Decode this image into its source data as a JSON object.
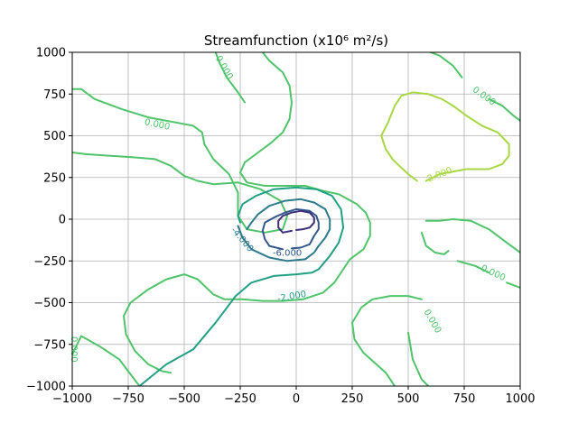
{
  "chart_data": {
    "type": "contour",
    "title": "Streamfunction (x10⁶ m²/s)",
    "xlabel": "",
    "ylabel": "",
    "xlim": [
      -1000,
      1000
    ],
    "ylim": [
      -1000,
      1000
    ],
    "xticks": [
      -1000,
      -750,
      -500,
      -250,
      0,
      250,
      500,
      750,
      1000
    ],
    "yticks": [
      -1000,
      -750,
      -500,
      -250,
      0,
      250,
      500,
      750,
      1000
    ],
    "xtick_labels": [
      "−1000",
      "−750",
      "−500",
      "−250",
      "0",
      "250",
      "500",
      "750",
      "1000"
    ],
    "ytick_labels": [
      "−1000",
      "−750",
      "−500",
      "−250",
      "0",
      "250",
      "500",
      "750",
      "1000"
    ],
    "grid": true,
    "levels": [
      -8,
      -6,
      -4,
      -2,
      0,
      2
    ],
    "level_colors": {
      "-8": "#3e2f7a",
      "-6": "#31578b",
      "-4": "#2b7a8c",
      "-2": "#21a084",
      "0": "#4fc46b",
      "2": "#a7d844"
    },
    "contours": [
      {
        "level": 0,
        "points": [
          [
            -1000,
            -810
          ],
          [
            -960,
            -700
          ],
          [
            -880,
            -760
          ],
          [
            -790,
            -840
          ],
          [
            -700,
            -1000
          ]
        ]
      },
      {
        "level": 0,
        "points": [
          [
            -1000,
            780
          ],
          [
            -960,
            780
          ],
          [
            -900,
            720
          ],
          [
            -780,
            660
          ],
          [
            -660,
            610
          ],
          [
            -540,
            580
          ],
          [
            -460,
            560
          ],
          [
            -420,
            520
          ],
          [
            -410,
            450
          ],
          [
            -370,
            360
          ],
          [
            -300,
            270
          ],
          [
            -260,
            160
          ],
          [
            -260,
            20
          ],
          [
            -220,
            -60
          ],
          [
            -140,
            -80
          ],
          [
            -60,
            -60
          ],
          [
            -40,
            20
          ],
          [
            -70,
            110
          ],
          [
            -160,
            180
          ],
          [
            -260,
            220
          ],
          [
            -370,
            210
          ],
          [
            -440,
            230
          ],
          [
            -500,
            260
          ],
          [
            -560,
            320
          ],
          [
            -630,
            360
          ],
          [
            -720,
            370
          ],
          [
            -830,
            380
          ],
          [
            -940,
            390
          ],
          [
            -1000,
            400
          ]
        ]
      },
      {
        "level": 0,
        "points": [
          [
            -360,
            1000
          ],
          [
            -340,
            930
          ],
          [
            -310,
            850
          ],
          [
            -260,
            760
          ],
          [
            -230,
            700
          ]
        ]
      },
      {
        "level": 0,
        "points": [
          [
            -150,
            1000
          ],
          [
            -120,
            950
          ],
          [
            -60,
            880
          ],
          [
            -30,
            800
          ],
          [
            -20,
            700
          ],
          [
            -30,
            600
          ],
          [
            -60,
            520
          ],
          [
            -110,
            460
          ],
          [
            -170,
            400
          ],
          [
            -230,
            340
          ],
          [
            -250,
            280
          ],
          [
            -220,
            220
          ],
          [
            -140,
            200
          ],
          [
            -60,
            200
          ],
          [
            40,
            200
          ],
          [
            120,
            170
          ],
          [
            190,
            150
          ],
          [
            270,
            90
          ],
          [
            310,
            40
          ],
          [
            330,
            -20
          ],
          [
            330,
            -100
          ],
          [
            300,
            -180
          ],
          [
            240,
            -240
          ],
          [
            200,
            -320
          ],
          [
            170,
            -380
          ],
          [
            120,
            -440
          ],
          [
            30,
            -480
          ],
          [
            -60,
            -490
          ],
          [
            -150,
            -490
          ],
          [
            -240,
            -480
          ],
          [
            -320,
            -480
          ],
          [
            -370,
            -450
          ],
          [
            -440,
            -360
          ],
          [
            -500,
            -330
          ],
          [
            -580,
            -360
          ],
          [
            -660,
            -420
          ],
          [
            -740,
            -500
          ],
          [
            -770,
            -580
          ],
          [
            -760,
            -690
          ],
          [
            -720,
            -790
          ],
          [
            -660,
            -870
          ],
          [
            -600,
            -910
          ],
          [
            -560,
            -920
          ]
        ]
      },
      {
        "level": 0,
        "points": [
          [
            600,
            1000
          ],
          [
            640,
            980
          ],
          [
            700,
            920
          ],
          [
            740,
            850
          ]
        ]
      },
      {
        "level": 0,
        "points": [
          [
            860,
            720
          ],
          [
            920,
            680
          ],
          [
            970,
            620
          ],
          [
            1000,
            590
          ]
        ]
      },
      {
        "level": 0,
        "points": [
          [
            580,
            -10
          ],
          [
            640,
            -10
          ],
          [
            700,
            0
          ],
          [
            780,
            -10
          ],
          [
            860,
            -60
          ],
          [
            940,
            -140
          ],
          [
            1000,
            -200
          ]
        ]
      },
      {
        "level": 0,
        "points": [
          [
            560,
            -80
          ],
          [
            580,
            -160
          ],
          [
            620,
            -200
          ],
          [
            660,
            -210
          ],
          [
            680,
            -190
          ]
        ]
      },
      {
        "level": 0,
        "points": [
          [
            720,
            -250
          ],
          [
            800,
            -280
          ],
          [
            860,
            -320
          ]
        ]
      },
      {
        "level": 0,
        "points": [
          [
            940,
            -380
          ],
          [
            1000,
            -410
          ]
        ]
      },
      {
        "level": 0,
        "points": [
          [
            500,
            -680
          ],
          [
            520,
            -840
          ],
          [
            560,
            -960
          ],
          [
            590,
            -1000
          ]
        ]
      },
      {
        "level": 0,
        "points": [
          [
            560,
            -480
          ],
          [
            500,
            -460
          ],
          [
            420,
            -460
          ],
          [
            340,
            -480
          ],
          [
            290,
            -530
          ],
          [
            250,
            -620
          ],
          [
            260,
            -720
          ],
          [
            300,
            -800
          ],
          [
            350,
            -860
          ],
          [
            400,
            -920
          ],
          [
            430,
            -980
          ],
          [
            440,
            -1000
          ]
        ]
      },
      {
        "level": 2,
        "points": [
          [
            580,
            230
          ],
          [
            640,
            270
          ],
          [
            760,
            300
          ],
          [
            860,
            300
          ],
          [
            920,
            330
          ],
          [
            950,
            380
          ],
          [
            950,
            450
          ],
          [
            900,
            520
          ],
          [
            830,
            560
          ],
          [
            760,
            620
          ],
          [
            700,
            680
          ],
          [
            650,
            720
          ],
          [
            590,
            750
          ],
          [
            520,
            760
          ],
          [
            470,
            740
          ],
          [
            440,
            680
          ],
          [
            410,
            580
          ],
          [
            380,
            500
          ],
          [
            400,
            420
          ],
          [
            430,
            360
          ],
          [
            460,
            320
          ],
          [
            500,
            270
          ],
          [
            540,
            230
          ]
        ]
      },
      {
        "level": -2,
        "points": [
          [
            -700,
            -1000
          ],
          [
            -580,
            -870
          ],
          [
            -460,
            -780
          ],
          [
            -360,
            -620
          ],
          [
            -270,
            -460
          ],
          [
            -200,
            -380
          ],
          [
            -100,
            -340
          ],
          [
            0,
            -330
          ],
          [
            70,
            -320
          ],
          [
            100,
            -300
          ],
          [
            150,
            -220
          ],
          [
            190,
            -140
          ],
          [
            210,
            -50
          ],
          [
            200,
            60
          ],
          [
            160,
            140
          ],
          [
            90,
            180
          ],
          [
            0,
            190
          ],
          [
            -100,
            180
          ],
          [
            -180,
            140
          ],
          [
            -240,
            90
          ],
          [
            -260,
            20
          ],
          [
            -250,
            -20
          ]
        ]
      },
      {
        "level": -4,
        "points": [
          [
            -260,
            -40
          ],
          [
            -240,
            -110
          ],
          [
            -200,
            -180
          ],
          [
            -120,
            -230
          ],
          [
            -40,
            -250
          ],
          [
            40,
            -240
          ],
          [
            80,
            -200
          ],
          [
            100,
            -160
          ],
          [
            130,
            -110
          ],
          [
            150,
            -60
          ],
          [
            150,
            0
          ],
          [
            130,
            60
          ],
          [
            80,
            100
          ],
          [
            20,
            120
          ],
          [
            -50,
            110
          ],
          [
            -120,
            80
          ],
          [
            -170,
            30
          ],
          [
            -200,
            -20
          ],
          [
            -220,
            -60
          ]
        ]
      },
      {
        "level": -6,
        "points": [
          [
            -60,
            -180
          ],
          [
            -120,
            -160
          ],
          [
            -140,
            -120
          ],
          [
            -150,
            -70
          ],
          [
            -140,
            -20
          ],
          [
            -100,
            10
          ],
          [
            -50,
            40
          ],
          [
            0,
            60
          ],
          [
            60,
            50
          ],
          [
            90,
            20
          ],
          [
            100,
            -20
          ],
          [
            100,
            -60
          ],
          [
            80,
            -100
          ],
          [
            60,
            -150
          ],
          [
            20,
            -170
          ],
          [
            -20,
            -175
          ]
        ]
      },
      {
        "level": -8,
        "points": [
          [
            -20,
            -70
          ],
          [
            -60,
            -80
          ],
          [
            -80,
            -50
          ],
          [
            -80,
            -10
          ],
          [
            -60,
            20
          ],
          [
            -20,
            40
          ],
          [
            20,
            50
          ],
          [
            60,
            40
          ],
          [
            80,
            10
          ],
          [
            80,
            -20
          ],
          [
            60,
            -50
          ],
          [
            30,
            -60
          ],
          [
            0,
            -65
          ]
        ]
      }
    ],
    "contour_labels": [
      {
        "text": "0.000",
        "x": -620,
        "y": 570,
        "level": 0,
        "angle": 12
      },
      {
        "text": "0.000",
        "x": -320,
        "y": 910,
        "level": 0,
        "angle": 60
      },
      {
        "text": "0.000",
        "x": 840,
        "y": 740,
        "level": 0,
        "angle": 35
      },
      {
        "text": "0.000",
        "x": 880,
        "y": -320,
        "level": 0,
        "angle": 25
      },
      {
        "text": "0.000",
        "x": 610,
        "y": -610,
        "level": 0,
        "angle": 60
      },
      {
        "text": "0.000",
        "x": -990,
        "y": -780,
        "level": 0,
        "angle": 90
      },
      {
        "text": "2.000",
        "x": 640,
        "y": 270,
        "level": 2,
        "angle": -22
      },
      {
        "text": "-2.000",
        "x": -20,
        "y": -460,
        "level": -2,
        "angle": -10
      },
      {
        "text": "-4.000",
        "x": -240,
        "y": -120,
        "level": -4,
        "angle": 50
      },
      {
        "text": "-6.000",
        "x": -40,
        "y": -200,
        "level": -6,
        "angle": 0
      }
    ]
  }
}
